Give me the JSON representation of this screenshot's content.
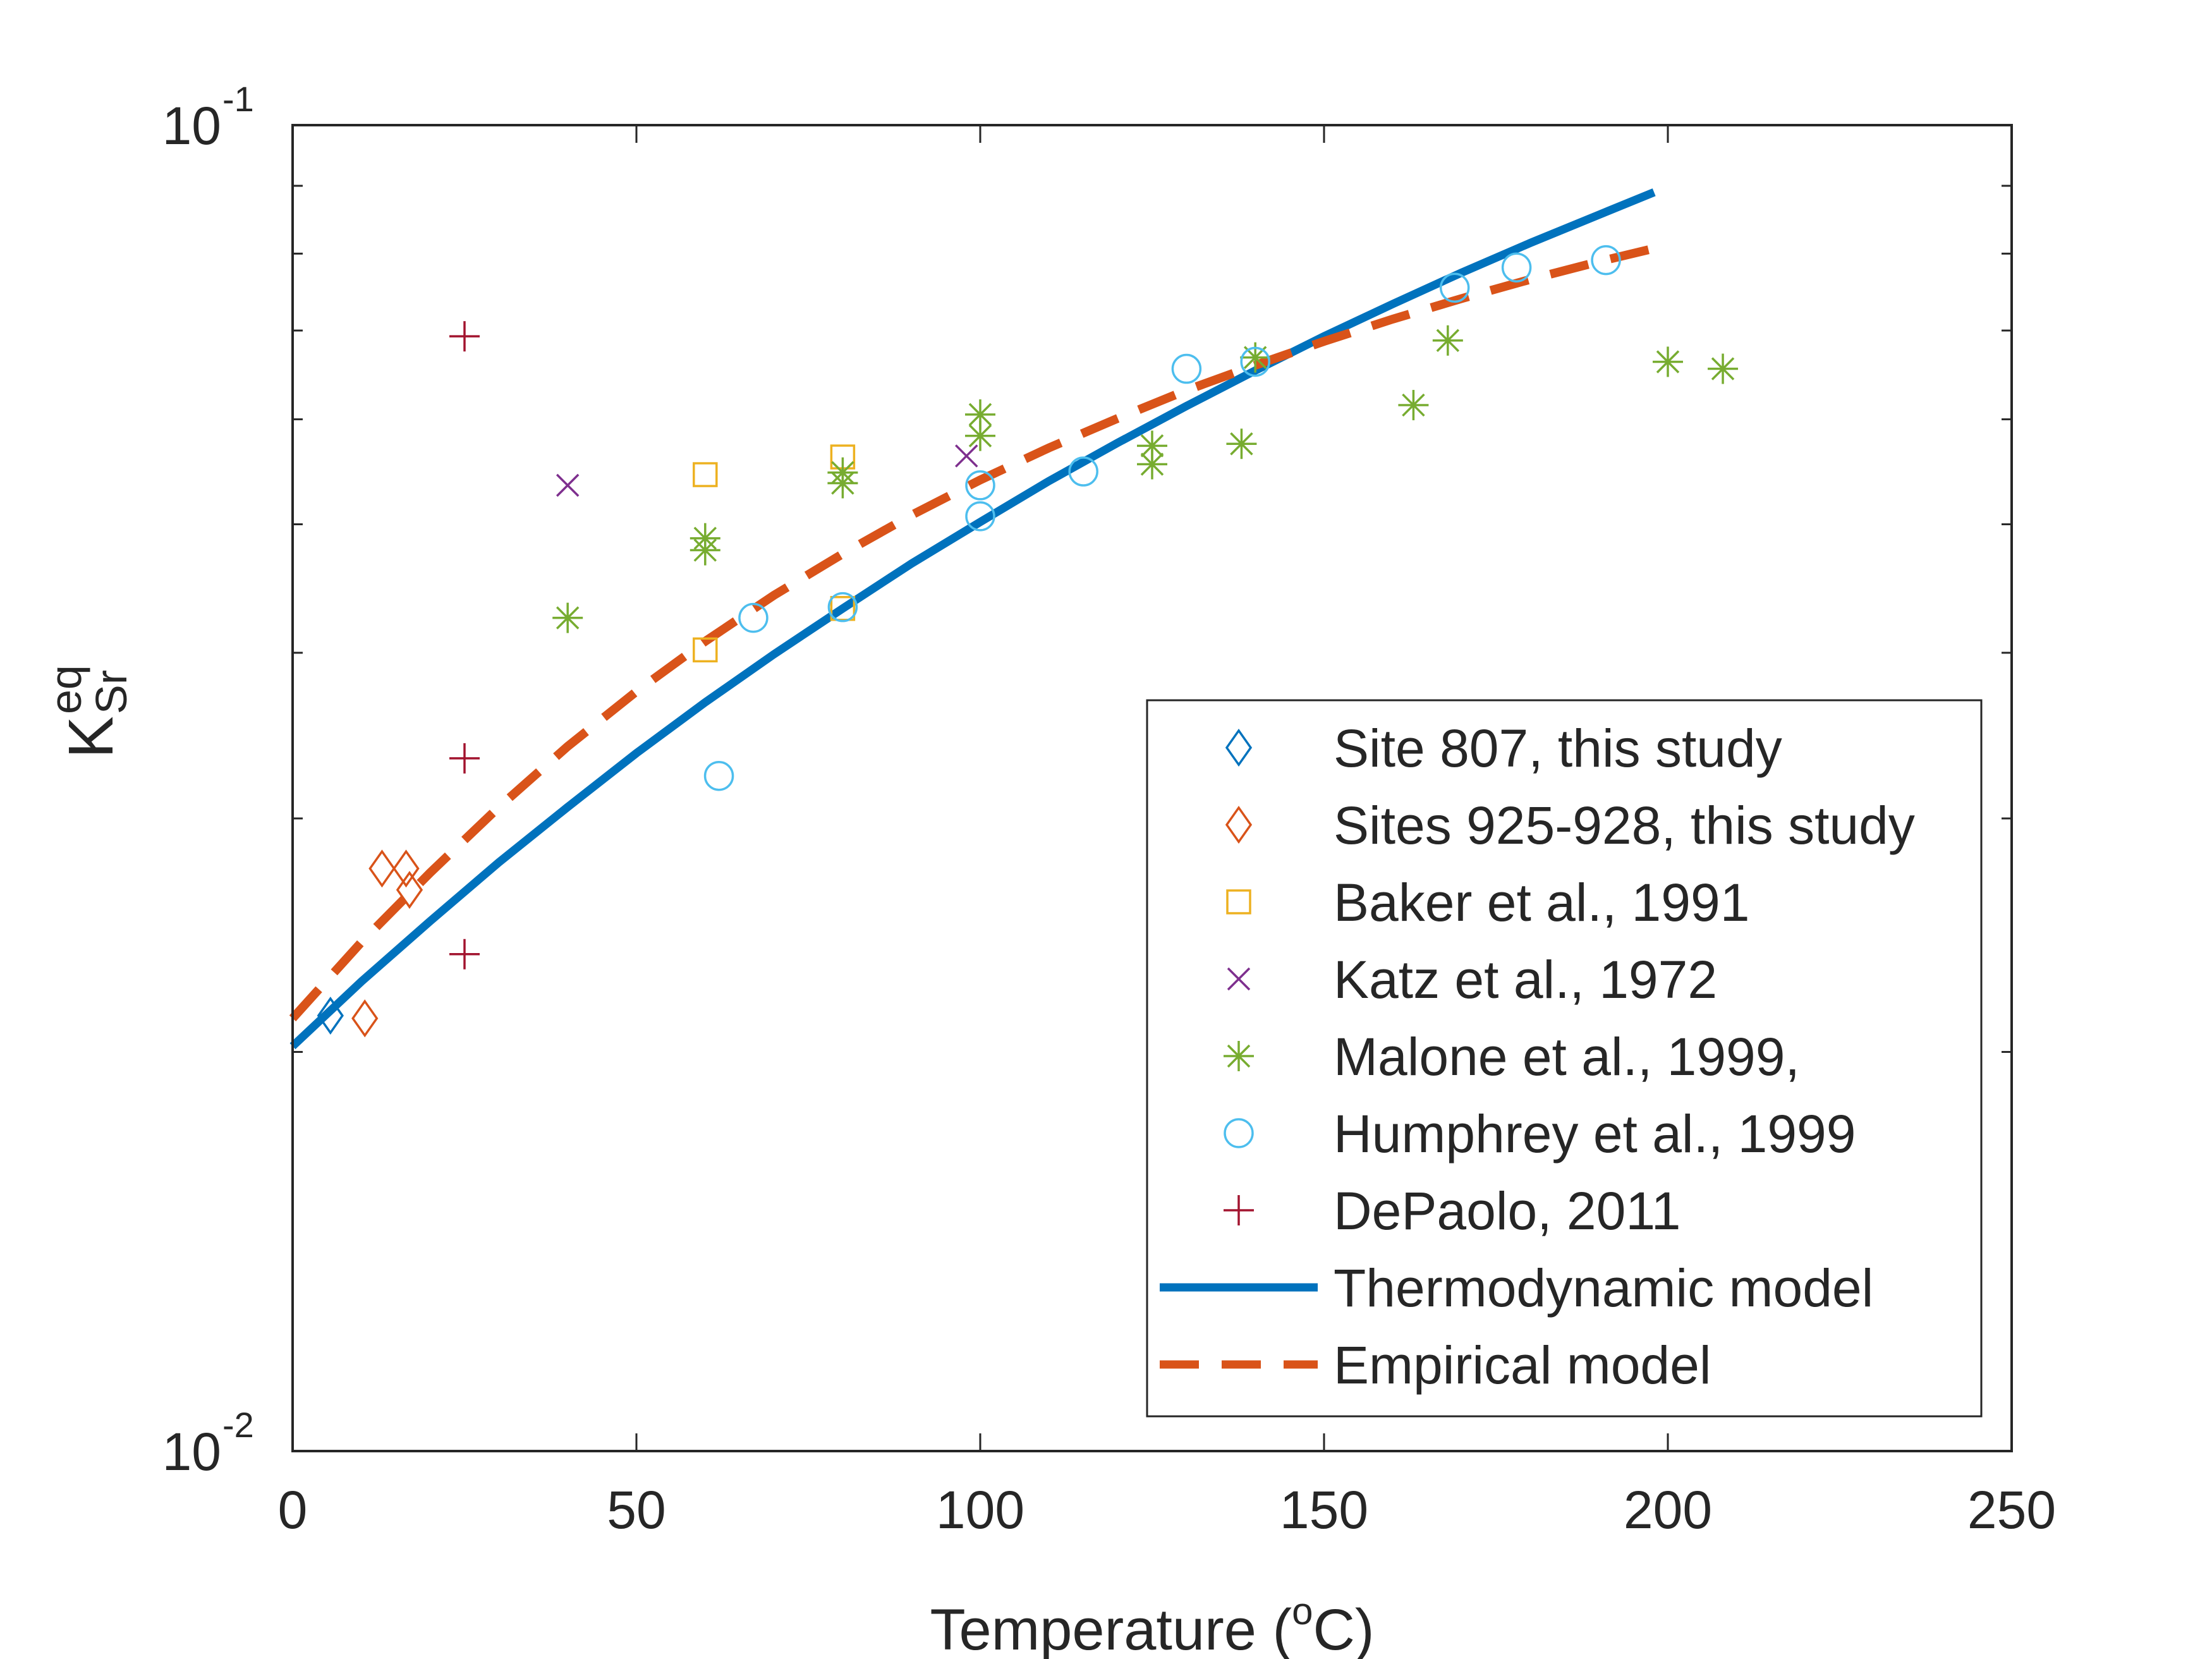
{
  "chart_data": {
    "type": "scatter",
    "xlabel": {
      "main": "Temperature (",
      "sup": "o",
      "end": "C)"
    },
    "ylabel": {
      "main": "K",
      "sup": "eq",
      "sub": "Sr"
    },
    "xlim": [
      0,
      250
    ],
    "ylim": [
      0.01,
      0.1
    ],
    "y_scale": "log",
    "x_ticks": [
      {
        "value": 0,
        "label": "0"
      },
      {
        "value": 50,
        "label": "50"
      },
      {
        "value": 100,
        "label": "100"
      },
      {
        "value": 150,
        "label": "150"
      },
      {
        "value": 200,
        "label": "200"
      },
      {
        "value": 250,
        "label": "250"
      }
    ],
    "y_ticks": [
      {
        "value": 0.01,
        "base": "10",
        "exp": "-2"
      },
      {
        "value": 0.1,
        "base": "10",
        "exp": "-1"
      }
    ],
    "grid": false,
    "legend_position": "bottom-right",
    "series": [
      {
        "name": "Site 807, this study",
        "marker": "diamond",
        "color": "#0072BD",
        "points": [
          [
            5.5,
            0.0213
          ]
        ]
      },
      {
        "name": "Sites 925-928, this study",
        "marker": "diamond",
        "color": "#D95319",
        "points": [
          [
            13,
            0.0275
          ],
          [
            16.5,
            0.0275
          ],
          [
            17,
            0.0265
          ],
          [
            10.5,
            0.0212
          ]
        ]
      },
      {
        "name": "Baker et al., 1991",
        "marker": "square",
        "color": "#EDB120",
        "points": [
          [
            60,
            0.0545
          ],
          [
            60,
            0.0402
          ],
          [
            80,
            0.0562
          ],
          [
            80,
            0.0432
          ]
        ]
      },
      {
        "name": "Katz et al., 1972",
        "marker": "x",
        "color": "#7E2F8E",
        "points": [
          [
            40,
            0.0535
          ],
          [
            98,
            0.0563
          ]
        ]
      },
      {
        "name": "Malone et al., 1999,",
        "marker": "asterisk",
        "color": "#77AC30",
        "points": [
          [
            40,
            0.0425
          ],
          [
            60,
            0.0488
          ],
          [
            60,
            0.0478
          ],
          [
            80,
            0.0547
          ],
          [
            80,
            0.0537
          ],
          [
            100,
            0.0605
          ],
          [
            100,
            0.0583
          ],
          [
            125,
            0.0573
          ],
          [
            125,
            0.0555
          ],
          [
            138,
            0.0575
          ],
          [
            140,
            0.0668
          ],
          [
            163,
            0.0615
          ],
          [
            168,
            0.0688
          ],
          [
            200,
            0.0663
          ],
          [
            208,
            0.0655
          ]
        ]
      },
      {
        "name": "Humphrey et al., 1999",
        "marker": "circle",
        "color": "#4DBEEE",
        "points": [
          [
            62,
            0.0323
          ],
          [
            67,
            0.0425
          ],
          [
            80,
            0.0433
          ],
          [
            100,
            0.0535
          ],
          [
            100,
            0.0507
          ],
          [
            115,
            0.0548
          ],
          [
            130,
            0.0655
          ],
          [
            140,
            0.0663
          ],
          [
            169,
            0.0754
          ],
          [
            178,
            0.0781
          ],
          [
            191,
            0.0791
          ]
        ]
      },
      {
        "name": "DePaolo, 2011",
        "marker": "plus",
        "color": "#A2142F",
        "points": [
          [
            25,
            0.0693
          ],
          [
            25,
            0.0333
          ],
          [
            25,
            0.0237
          ]
        ]
      }
    ],
    "lines": [
      {
        "name": "Thermodynamic model",
        "style": "solid",
        "color": "#0072BD",
        "points": [
          [
            0,
            0.0202
          ],
          [
            10,
            0.0226
          ],
          [
            20,
            0.0251
          ],
          [
            30,
            0.0278
          ],
          [
            40,
            0.0306
          ],
          [
            50,
            0.0336
          ],
          [
            60,
            0.0367
          ],
          [
            70,
            0.0399
          ],
          [
            80,
            0.0432
          ],
          [
            90,
            0.0467
          ],
          [
            100,
            0.0502
          ],
          [
            110,
            0.0539
          ],
          [
            120,
            0.0576
          ],
          [
            130,
            0.0614
          ],
          [
            140,
            0.0653
          ],
          [
            150,
            0.0693
          ],
          [
            160,
            0.0733
          ],
          [
            170,
            0.0774
          ],
          [
            180,
            0.0815
          ],
          [
            190,
            0.0856
          ],
          [
            198,
            0.089
          ]
        ]
      },
      {
        "name": "Empirical model",
        "style": "dashed",
        "color": "#D95319",
        "points": [
          [
            0,
            0.0212
          ],
          [
            10,
            0.0242
          ],
          [
            20,
            0.0273
          ],
          [
            30,
            0.0306
          ],
          [
            40,
            0.034
          ],
          [
            50,
            0.0374
          ],
          [
            60,
            0.0408
          ],
          [
            70,
            0.0442
          ],
          [
            80,
            0.0475
          ],
          [
            90,
            0.0508
          ],
          [
            100,
            0.054
          ],
          [
            110,
            0.0571
          ],
          [
            120,
            0.0601
          ],
          [
            130,
            0.0631
          ],
          [
            140,
            0.0659
          ],
          [
            150,
            0.0687
          ],
          [
            160,
            0.0714
          ],
          [
            170,
            0.074
          ],
          [
            180,
            0.0765
          ],
          [
            190,
            0.0789
          ],
          [
            200,
            0.0812
          ]
        ]
      }
    ]
  }
}
